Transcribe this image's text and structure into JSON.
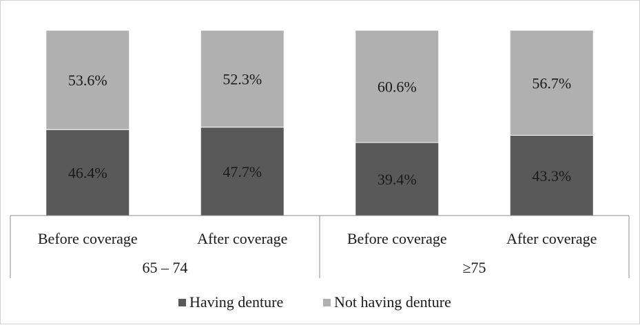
{
  "chart_data": {
    "type": "bar",
    "stacked": true,
    "normalized_percent": true,
    "groups": [
      {
        "label": "65 – 74",
        "categories": [
          "Before coverage",
          "After coverage"
        ]
      },
      {
        "label": "≥75",
        "categories": [
          "Before coverage",
          "After coverage"
        ]
      }
    ],
    "categories": [
      "Before coverage",
      "After coverage",
      "Before coverage",
      "After coverage"
    ],
    "series": [
      {
        "name": "Having denture",
        "color": "#595959",
        "values": [
          46.4,
          47.7,
          39.4,
          43.3
        ],
        "labels": [
          "46.4%",
          "47.7%",
          "39.4%",
          "43.3%"
        ]
      },
      {
        "name": "Not having denture",
        "color": "#b0b0b0",
        "values": [
          53.6,
          52.3,
          60.6,
          56.7
        ],
        "labels": [
          "53.6%",
          "52.3%",
          "60.6%",
          "56.7%"
        ]
      }
    ],
    "ylim": [
      0,
      100
    ],
    "grid": false,
    "legend_position": "bottom",
    "title": "",
    "xlabel": "",
    "ylabel": ""
  }
}
